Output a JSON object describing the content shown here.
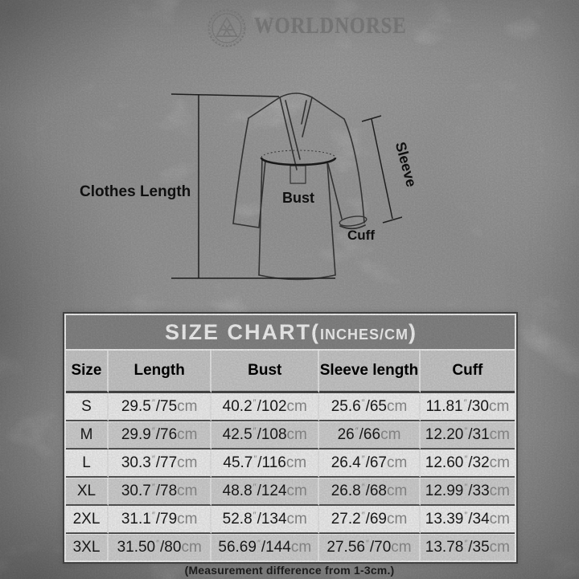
{
  "brand": {
    "name": "WORLDNORSE"
  },
  "diagram": {
    "clothes_length_label": "Clothes Length",
    "bust_label": "Bust",
    "cuff_label": "Cuff",
    "sleeve_label": "Sleeve"
  },
  "size_chart": {
    "title_main": "SIZE CHART(",
    "title_sub": "INCHES/CM",
    "title_close": ")",
    "columns": [
      "Size",
      "Length",
      "Bust",
      "Sleeve length",
      "Cuff"
    ],
    "unit_inch_mark": "″",
    "unit_cm": "cm",
    "rows": [
      {
        "size": "S",
        "cells": [
          {
            "in": "29.5",
            "cm": "75"
          },
          {
            "in": "40.2",
            "cm": "102"
          },
          {
            "in": "25.6",
            "cm": "65"
          },
          {
            "in": "11.81",
            "cm": "30"
          }
        ]
      },
      {
        "size": "M",
        "cells": [
          {
            "in": "29.9",
            "cm": "76"
          },
          {
            "in": "42.5",
            "cm": "108"
          },
          {
            "in": "26",
            "cm": "66"
          },
          {
            "in": "12.20",
            "cm": "31"
          }
        ]
      },
      {
        "size": "L",
        "cells": [
          {
            "in": "30.3",
            "cm": "77"
          },
          {
            "in": "45.7",
            "cm": "116"
          },
          {
            "in": "26.4",
            "cm": "67"
          },
          {
            "in": "12.60",
            "cm": "32"
          }
        ]
      },
      {
        "size": "XL",
        "cells": [
          {
            "in": "30.7",
            "cm": "78"
          },
          {
            "in": "48.8",
            "cm": "124"
          },
          {
            "in": "26.8",
            "cm": "68"
          },
          {
            "in": "12.99",
            "cm": "33"
          }
        ]
      },
      {
        "size": "2XL",
        "cells": [
          {
            "in": "31.1",
            "cm": "79"
          },
          {
            "in": "52.8",
            "cm": "134"
          },
          {
            "in": "27.2",
            "cm": "69"
          },
          {
            "in": "13.39",
            "cm": "34"
          }
        ]
      },
      {
        "size": "3XL",
        "cells": [
          {
            "in": "31.50",
            "cm": "80"
          },
          {
            "in": "56.69",
            "cm": "144"
          },
          {
            "in": "27.56",
            "cm": "70"
          },
          {
            "in": "13.78",
            "cm": "35"
          }
        ]
      }
    ],
    "note": "(Measurement difference from 1-3cm.)",
    "colors": {
      "title_bg": "#8c8c8c",
      "title_text": "#ffffff",
      "header_bg": "#d3d3d3",
      "row_bg": "#fdfdfd",
      "row_alt_bg": "#dcdcdc",
      "border_dark": "#4a4a4a",
      "row_line": "#585858",
      "col_line": "#f2f2f2",
      "number_color": "#1b1b1b",
      "unit_color": "#929292"
    }
  }
}
